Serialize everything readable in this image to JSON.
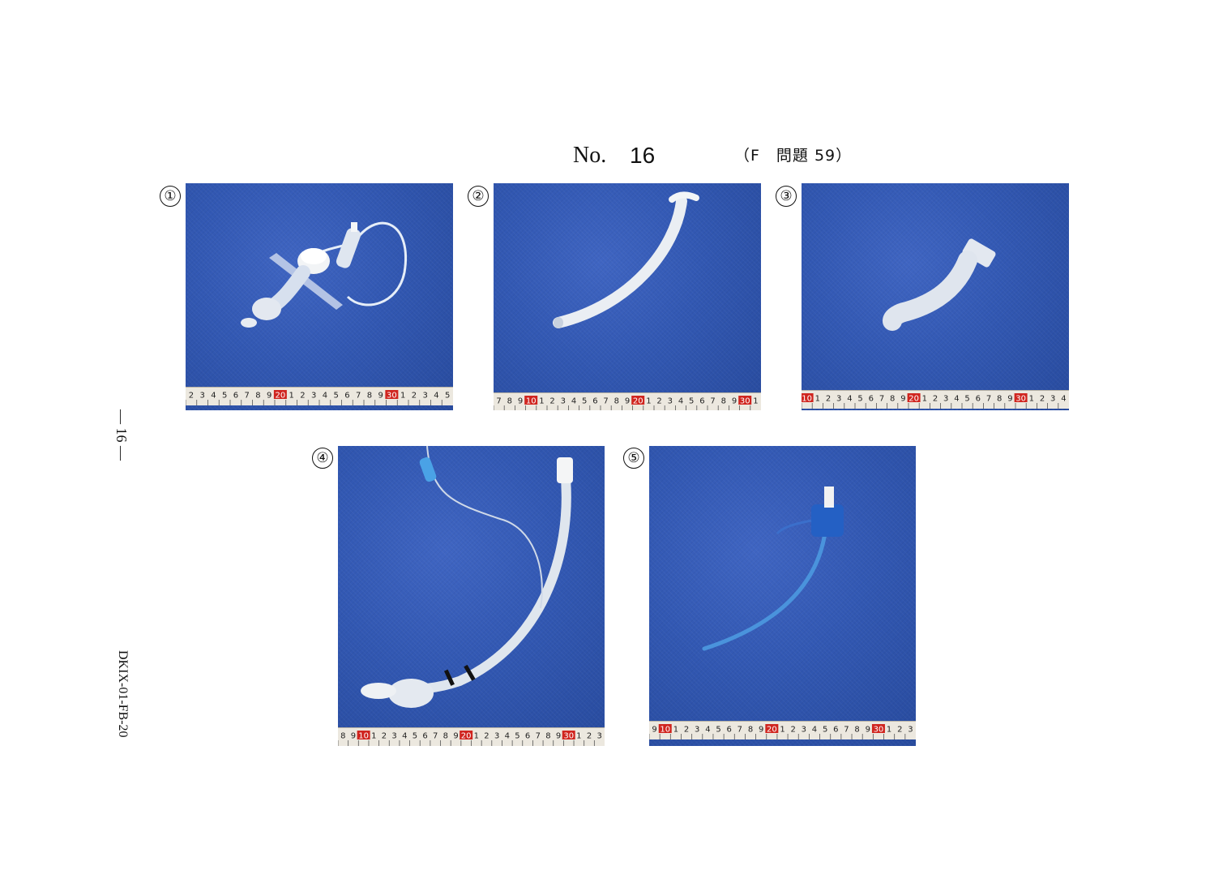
{
  "header": {
    "no_label": "No.",
    "number": "16",
    "reference": "（F　問題 59）"
  },
  "side": {
    "page_marker": "— 16 —",
    "doc_code": "DKIX-01-FB-20"
  },
  "panels": [
    {
      "label": "①",
      "item": "tracheostomy-tube",
      "ruler": [
        "2",
        "3",
        "4",
        "5",
        "6",
        "7",
        "8",
        "9",
        "20",
        "1",
        "2",
        "3",
        "4",
        "5",
        "6",
        "7",
        "8",
        "9",
        "30",
        "1",
        "2",
        "3",
        "4",
        "5"
      ]
    },
    {
      "label": "②",
      "item": "nasopharyngeal-airway",
      "ruler": [
        "7",
        "8",
        "9",
        "10",
        "1",
        "2",
        "3",
        "4",
        "5",
        "6",
        "7",
        "8",
        "9",
        "20",
        "1",
        "2",
        "3",
        "4",
        "5",
        "6",
        "7",
        "8",
        "9",
        "30",
        "1"
      ]
    },
    {
      "label": "③",
      "item": "oropharyngeal-airway",
      "ruler": [
        "10",
        "1",
        "2",
        "3",
        "4",
        "5",
        "6",
        "7",
        "8",
        "9",
        "20",
        "1",
        "2",
        "3",
        "4",
        "5",
        "6",
        "7",
        "8",
        "9",
        "30",
        "1",
        "2",
        "3",
        "4"
      ]
    },
    {
      "label": "④",
      "item": "endotracheal-tube",
      "ruler": [
        "8",
        "9",
        "10",
        "1",
        "2",
        "3",
        "4",
        "5",
        "6",
        "7",
        "8",
        "9",
        "20",
        "1",
        "2",
        "3",
        "4",
        "5",
        "6",
        "7",
        "8",
        "9",
        "30",
        "1",
        "2",
        "3"
      ]
    },
    {
      "label": "⑤",
      "item": "central-venous-catheter",
      "ruler": [
        "9",
        "10",
        "1",
        "2",
        "3",
        "4",
        "5",
        "6",
        "7",
        "8",
        "9",
        "20",
        "1",
        "2",
        "3",
        "4",
        "5",
        "6",
        "7",
        "8",
        "9",
        "30",
        "1",
        "2",
        "3"
      ]
    }
  ],
  "colors": {
    "backdrop_blue": "#3258b3",
    "ruler_red": "#d0251f",
    "ruler_bg": "#ece8df"
  }
}
